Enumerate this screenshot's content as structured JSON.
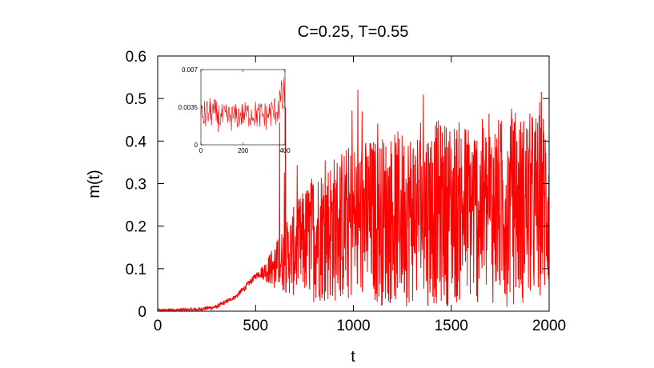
{
  "chart_data": [
    {
      "type": "line",
      "title": "C=0.25, T=0.55",
      "xlabel": "t",
      "ylabel": "m(t)",
      "xlim": [
        0,
        2000
      ],
      "ylim": [
        0,
        0.6
      ],
      "xticks": [
        "0",
        "500",
        "1000",
        "1500",
        "2000"
      ],
      "xtick_values": [
        0,
        500,
        1000,
        1500,
        2000
      ],
      "yticks": [
        "0",
        "0.1",
        "0.2",
        "0.3",
        "0.4",
        "0.5",
        "0.6"
      ],
      "ytick_values": [
        0,
        0.1,
        0.2,
        0.3,
        0.4,
        0.5,
        0.6
      ],
      "grid": false,
      "legend": "none",
      "series": [
        {
          "color": "#ff0000",
          "description_envelope": {
            "t": [
              0,
              200,
              300,
              400,
              450,
              500,
              520,
              550,
              600,
              700,
              800,
              900,
              1000,
              1200,
              1400,
              1600,
              1800,
              2000
            ],
            "lower": [
              0.0,
              0.0,
              0.005,
              0.03,
              0.05,
              0.075,
              0.08,
              0.07,
              0.05,
              0.03,
              0.02,
              0.015,
              0.01,
              0.01,
              0.01,
              0.01,
              0.01,
              0.01
            ],
            "upper": [
              0.005,
              0.008,
              0.015,
              0.04,
              0.065,
              0.09,
              0.1,
              0.12,
              0.16,
              0.25,
              0.33,
              0.37,
              0.4,
              0.42,
              0.45,
              0.45,
              0.46,
              0.48
            ],
            "peak_max": 0.53
          }
        }
      ]
    },
    {
      "type": "line",
      "title": "",
      "xlabel": "",
      "ylabel": "",
      "xlim": [
        0,
        400
      ],
      "ylim": [
        0,
        0.007
      ],
      "xticks": [
        "0",
        "200",
        "400"
      ],
      "xtick_values": [
        0,
        200,
        400
      ],
      "yticks": [
        "0",
        "0.0035",
        "0.007"
      ],
      "ytick_values": [
        0,
        0.0035,
        0.007
      ],
      "grid": false,
      "legend": "none",
      "series": [
        {
          "color": "#ff0000",
          "description_envelope": {
            "t": [
              0,
              50,
              100,
              150,
              200,
              250,
              300,
              350,
              380,
              400
            ],
            "lower": [
              0.001,
              0.0015,
              0.001,
              0.0012,
              0.0015,
              0.0015,
              0.0012,
              0.0015,
              0.002,
              0.002
            ],
            "upper": [
              0.004,
              0.0045,
              0.0038,
              0.0038,
              0.004,
              0.0042,
              0.004,
              0.0045,
              0.006,
              0.0065
            ]
          }
        }
      ]
    }
  ]
}
